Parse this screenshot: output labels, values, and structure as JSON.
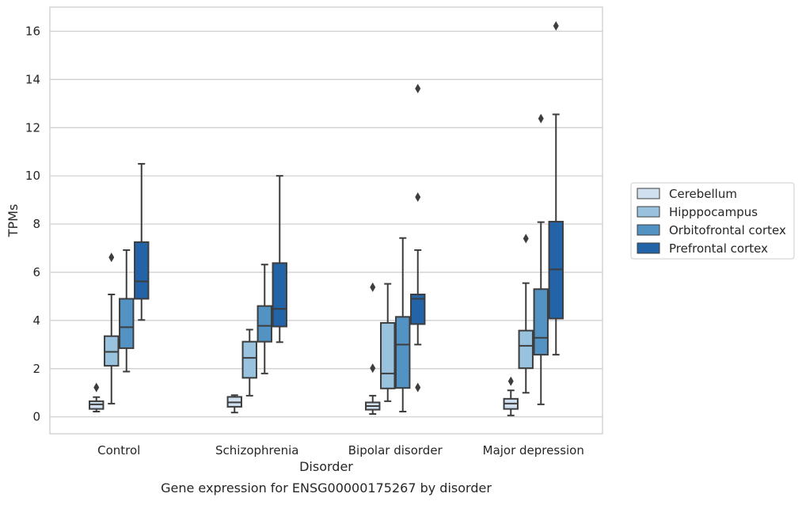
{
  "chart_data": {
    "type": "box",
    "xlabel": "Disorder",
    "ylabel": "TPMs",
    "caption": "Gene expression for ENSG00000175267 by disorder",
    "categories": [
      "Control",
      "Schizophrenia",
      "Bipolar disorder",
      "Major depression"
    ],
    "ylim": [
      -0.7,
      17
    ],
    "yticks": [
      "0",
      "2",
      "4",
      "6",
      "8",
      "10",
      "12",
      "14",
      "16"
    ],
    "grid": "horizontal",
    "legend_position": "right",
    "series": [
      {
        "name": "Cerebellum",
        "color": "#d0e0f0",
        "boxes": [
          {
            "whislo": 0.22,
            "q1": 0.33,
            "median": 0.52,
            "q3": 0.65,
            "whishi": 0.82,
            "fliers": [
              1.22
            ]
          },
          {
            "whislo": 0.18,
            "q1": 0.42,
            "median": 0.6,
            "q3": 0.83,
            "whishi": 0.9,
            "fliers": []
          },
          {
            "whislo": 0.12,
            "q1": 0.3,
            "median": 0.45,
            "q3": 0.6,
            "whishi": 0.88,
            "fliers": [
              5.38,
              2.02
            ]
          },
          {
            "whislo": 0.06,
            "q1": 0.33,
            "median": 0.55,
            "q3": 0.75,
            "whishi": 1.1,
            "fliers": [
              1.48
            ]
          }
        ]
      },
      {
        "name": "Hipppocampus",
        "color": "#98c2dd",
        "boxes": [
          {
            "whislo": 0.55,
            "q1": 2.12,
            "median": 2.7,
            "q3": 3.35,
            "whishi": 5.08,
            "fliers": [
              6.62
            ]
          },
          {
            "whislo": 0.88,
            "q1": 1.62,
            "median": 2.45,
            "q3": 3.12,
            "whishi": 3.62,
            "fliers": []
          },
          {
            "whislo": 0.65,
            "q1": 1.18,
            "median": 1.8,
            "q3": 3.9,
            "whishi": 5.52,
            "fliers": []
          },
          {
            "whislo": 1.0,
            "q1": 2.02,
            "median": 2.95,
            "q3": 3.58,
            "whishi": 5.55,
            "fliers": [
              7.4
            ]
          }
        ]
      },
      {
        "name": "Orbitofrontal cortex",
        "color": "#5393c4",
        "boxes": [
          {
            "whislo": 1.88,
            "q1": 2.85,
            "median": 3.72,
            "q3": 4.9,
            "whishi": 6.92,
            "fliers": []
          },
          {
            "whislo": 1.8,
            "q1": 3.12,
            "median": 3.78,
            "q3": 4.6,
            "whishi": 6.32,
            "fliers": []
          },
          {
            "whislo": 0.22,
            "q1": 1.2,
            "median": 3.0,
            "q3": 4.15,
            "whishi": 7.42,
            "fliers": []
          },
          {
            "whislo": 0.52,
            "q1": 2.58,
            "median": 3.28,
            "q3": 5.3,
            "whishi": 8.08,
            "fliers": [
              12.38
            ]
          }
        ]
      },
      {
        "name": "Prefrontal cortex",
        "color": "#2364a8",
        "boxes": [
          {
            "whislo": 4.02,
            "q1": 4.9,
            "median": 5.62,
            "q3": 7.25,
            "whishi": 10.5,
            "fliers": []
          },
          {
            "whislo": 3.1,
            "q1": 3.75,
            "median": 4.48,
            "q3": 6.38,
            "whishi": 10.0,
            "fliers": []
          },
          {
            "whislo": 3.0,
            "q1": 3.85,
            "median": 4.9,
            "q3": 5.08,
            "whishi": 6.92,
            "fliers": [
              13.62,
              9.12,
              1.22
            ]
          },
          {
            "whislo": 2.58,
            "q1": 4.08,
            "median": 6.12,
            "q3": 8.1,
            "whishi": 12.55,
            "fliers": [
              16.22
            ]
          }
        ]
      }
    ]
  }
}
